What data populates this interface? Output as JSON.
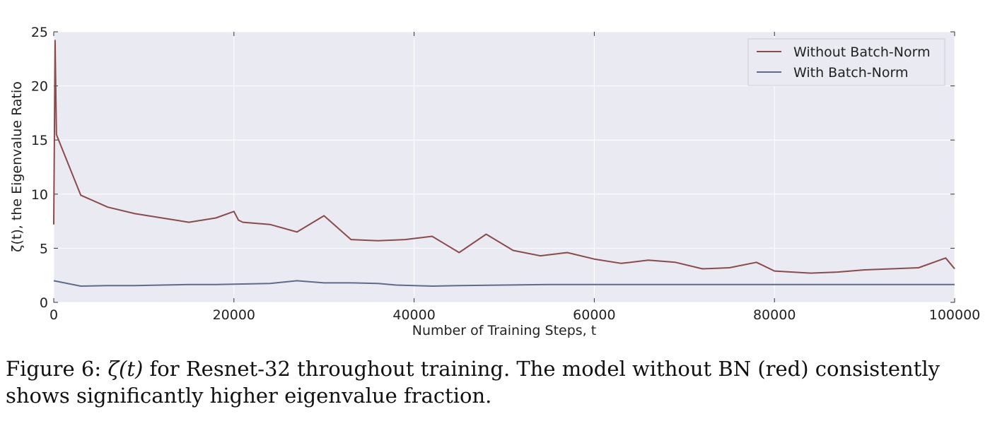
{
  "chart_data": {
    "type": "line",
    "title": "",
    "xlabel": "Number of Training Steps, t",
    "ylabel": "ζ(t), the Eigenvalue Ratio",
    "xlim": [
      0,
      100000
    ],
    "ylim": [
      0,
      25
    ],
    "xticks": [
      0,
      20000,
      40000,
      60000,
      80000,
      100000
    ],
    "yticks": [
      0,
      5,
      10,
      15,
      20,
      25
    ],
    "grid": true,
    "legend_position": "top-right",
    "colors": {
      "without_bn": "#8c4a4a",
      "with_bn": "#5d6c8c",
      "background": "#eaeaf2"
    },
    "series": [
      {
        "name": "Without Batch-Norm",
        "x": [
          0,
          150,
          300,
          3000,
          6000,
          9000,
          12000,
          15000,
          18000,
          20000,
          20500,
          21000,
          24000,
          27000,
          30000,
          33000,
          36000,
          39000,
          42000,
          45000,
          48000,
          51000,
          54000,
          57000,
          60000,
          63000,
          66000,
          69000,
          72000,
          75000,
          78000,
          80000,
          84000,
          87000,
          90000,
          93000,
          96000,
          99000,
          100000
        ],
        "y": [
          7.2,
          24.2,
          15.5,
          9.9,
          8.8,
          8.2,
          7.8,
          7.4,
          7.8,
          8.4,
          7.6,
          7.4,
          7.2,
          6.5,
          8.0,
          5.8,
          5.7,
          5.8,
          6.1,
          4.6,
          6.3,
          4.8,
          4.3,
          4.6,
          4.0,
          3.6,
          3.9,
          3.7,
          3.1,
          3.2,
          3.7,
          2.9,
          2.7,
          2.8,
          3.0,
          3.1,
          3.2,
          4.1,
          3.1
        ]
      },
      {
        "name": "With Batch-Norm",
        "x": [
          0,
          3000,
          6000,
          9000,
          12000,
          15000,
          18000,
          21000,
          24000,
          27000,
          30000,
          33000,
          36000,
          38000,
          42000,
          45000,
          50000,
          55000,
          60000,
          70000,
          80000,
          90000,
          100000
        ],
        "y": [
          2.0,
          1.5,
          1.55,
          1.55,
          1.6,
          1.65,
          1.65,
          1.7,
          1.75,
          2.0,
          1.8,
          1.8,
          1.75,
          1.6,
          1.5,
          1.55,
          1.6,
          1.65,
          1.65,
          1.65,
          1.65,
          1.65,
          1.65
        ]
      }
    ]
  },
  "caption": {
    "prefix": "Figure 6: ",
    "symbol": "ζ(t)",
    "text": " for Resnet-32 throughout training. The model without BN (red) consistently shows significantly higher eigenvalue fraction."
  }
}
